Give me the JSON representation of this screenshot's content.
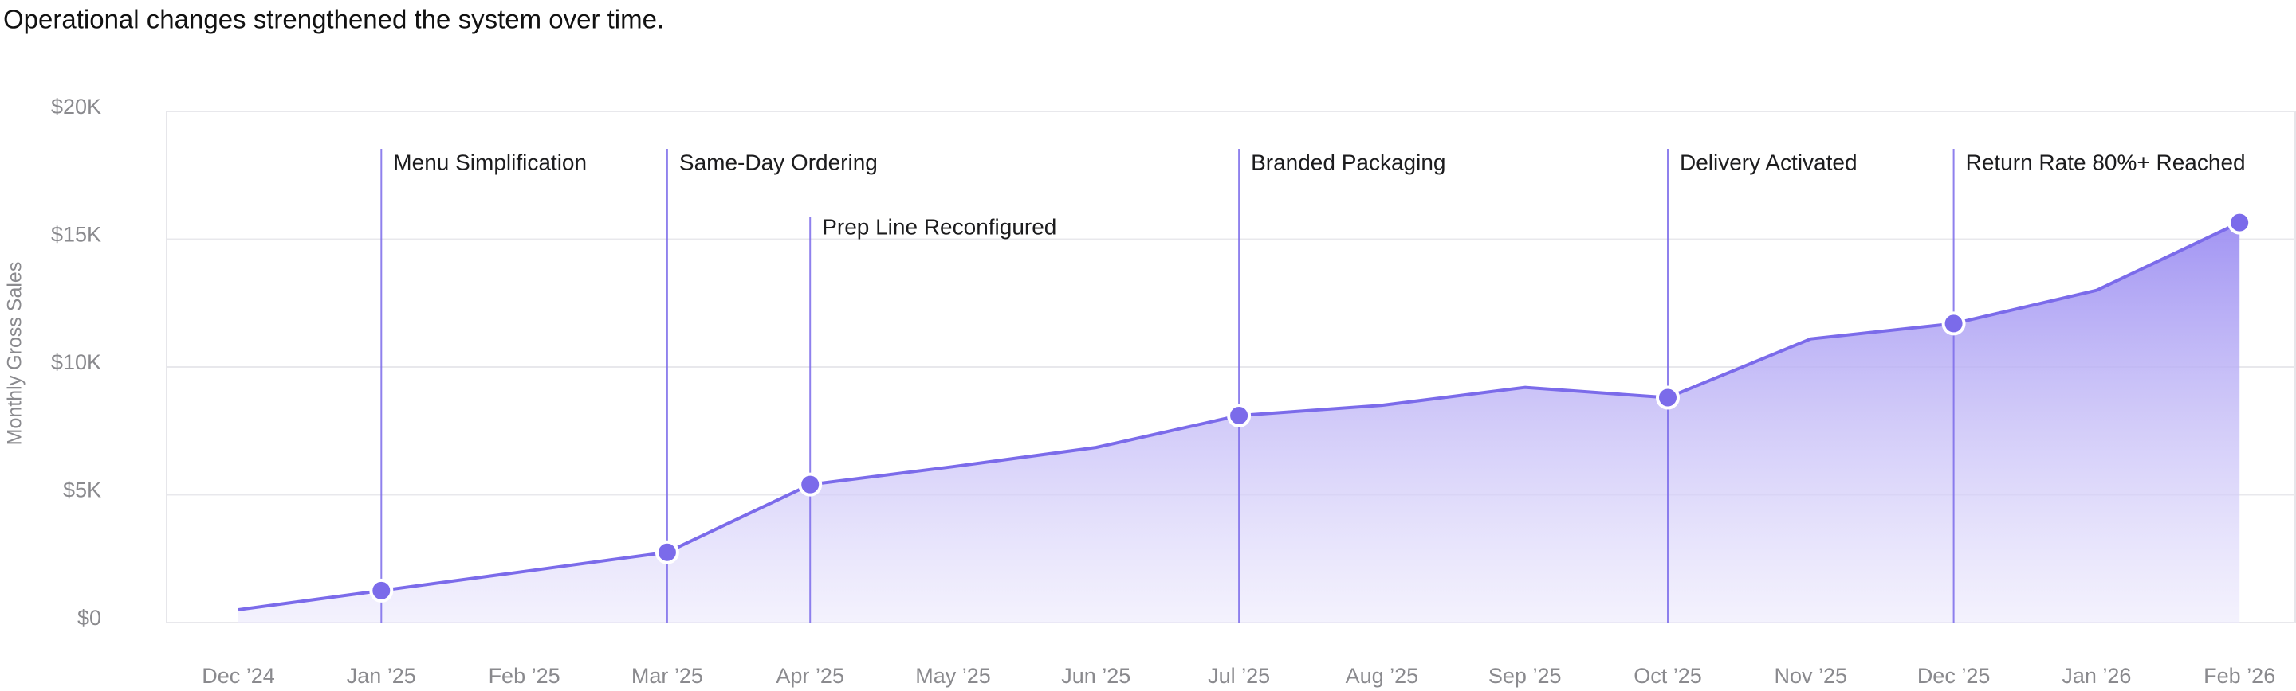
{
  "chart_data": {
    "type": "area",
    "title": "Operational changes strengthened the system over time.",
    "y_label": "Monthly Gross Sales",
    "categories": [
      "Dec ’24",
      "Jan ’25",
      "Feb ’25",
      "Mar ’25",
      "Apr ’25",
      "May ’25",
      "Jun ’25",
      "Jul ’25",
      "Aug ’25",
      "Sep ’25",
      "Oct ’25",
      "Nov ’25",
      "Dec ’25",
      "Jan ’26",
      "Feb ’26"
    ],
    "values": [
      500,
      1250,
      2000,
      2750,
      5400,
      6100,
      6850,
      8100,
      8500,
      9200,
      8800,
      11100,
      11700,
      13000,
      15650
    ],
    "color": "#7b6bea",
    "ylim": [
      0,
      20000
    ],
    "yticks": [
      {
        "value": 0,
        "label": "$0"
      },
      {
        "value": 5000,
        "label": "$5K"
      },
      {
        "value": 10000,
        "label": "$10K"
      },
      {
        "value": 15000,
        "label": "$15K"
      },
      {
        "value": 20000,
        "label": "$20K"
      }
    ],
    "grid": true,
    "end_marker": true,
    "annotations": [
      {
        "category": "Jan ’25",
        "label": "Menu Simplification"
      },
      {
        "category": "Mar ’25",
        "label": "Same-Day Ordering"
      },
      {
        "category": "Apr ’25",
        "label": "Prep Line Reconfigured"
      },
      {
        "category": "Jul ’25",
        "label": "Branded Packaging"
      },
      {
        "category": "Oct ’25",
        "label": "Delivery Activated"
      },
      {
        "category": "Dec ’25",
        "label": "Return Rate 80%+ Reached"
      }
    ]
  }
}
